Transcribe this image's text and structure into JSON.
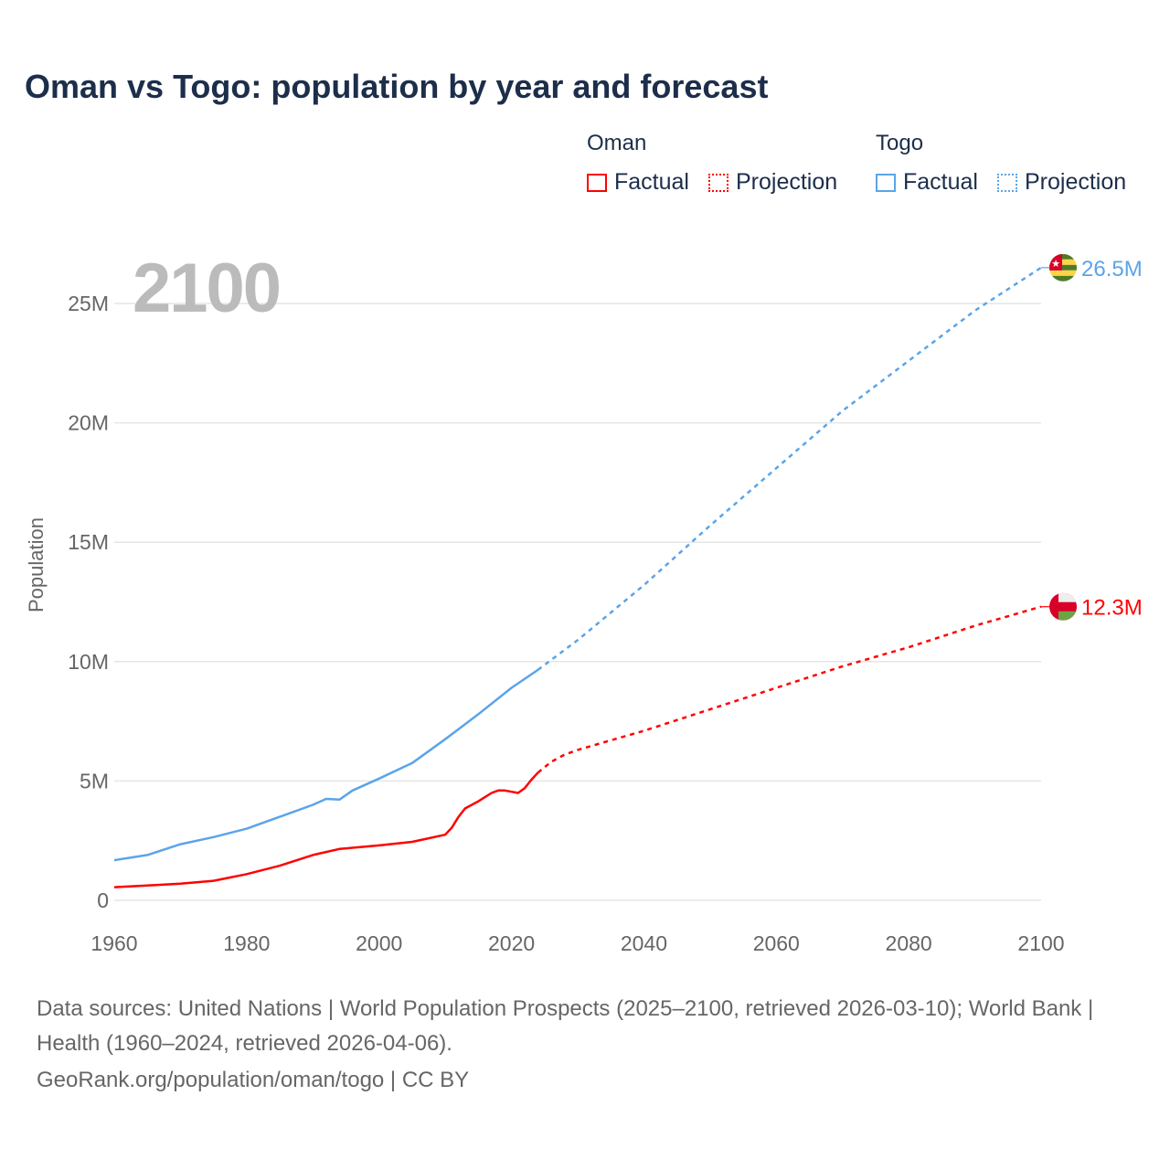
{
  "title": "Oman vs Togo: population by year and forecast",
  "legend": {
    "groups": [
      {
        "name": "Oman",
        "color": "#ff0000",
        "items": [
          "Factual",
          "Projection"
        ]
      },
      {
        "name": "Togo",
        "color": "#5ba4e8",
        "items": [
          "Factual",
          "Projection"
        ]
      }
    ]
  },
  "year_display": "2100",
  "chart_data": {
    "type": "line",
    "title": "Oman vs Togo: population by year and forecast",
    "xlabel": "",
    "ylabel": "Population",
    "xlim": [
      1960,
      2100
    ],
    "ylim": [
      0,
      27
    ],
    "x_ticks": [
      "1960",
      "1980",
      "2000",
      "2020",
      "2040",
      "2060",
      "2080",
      "2100"
    ],
    "y_ticks": [
      {
        "v": 0,
        "label": "0"
      },
      {
        "v": 5,
        "label": "5M"
      },
      {
        "v": 10,
        "label": "10M"
      },
      {
        "v": 15,
        "label": "15M"
      },
      {
        "v": 20,
        "label": "20M"
      },
      {
        "v": 25,
        "label": "25M"
      }
    ],
    "grid": true,
    "units": "millions",
    "series": [
      {
        "name": "Togo",
        "color": "#5ba4e8",
        "end_label": "26.5M",
        "factual": [
          [
            1960,
            1.68
          ],
          [
            1965,
            1.9
          ],
          [
            1970,
            2.35
          ],
          [
            1975,
            2.65
          ],
          [
            1980,
            3.0
          ],
          [
            1985,
            3.5
          ],
          [
            1990,
            4.0
          ],
          [
            1992,
            4.25
          ],
          [
            1994,
            4.22
          ],
          [
            1996,
            4.6
          ],
          [
            2000,
            5.1
          ],
          [
            2005,
            5.75
          ],
          [
            2010,
            6.75
          ],
          [
            2015,
            7.8
          ],
          [
            2020,
            8.9
          ],
          [
            2024,
            9.65
          ]
        ],
        "projection": [
          [
            2024,
            9.65
          ],
          [
            2030,
            10.9
          ],
          [
            2040,
            13.2
          ],
          [
            2050,
            15.7
          ],
          [
            2060,
            18.1
          ],
          [
            2070,
            20.5
          ],
          [
            2080,
            22.6
          ],
          [
            2090,
            24.7
          ],
          [
            2100,
            26.5
          ]
        ]
      },
      {
        "name": "Oman",
        "color": "#ff0000",
        "end_label": "12.3M",
        "factual": [
          [
            1960,
            0.55
          ],
          [
            1965,
            0.62
          ],
          [
            1970,
            0.7
          ],
          [
            1975,
            0.82
          ],
          [
            1980,
            1.1
          ],
          [
            1985,
            1.45
          ],
          [
            1990,
            1.9
          ],
          [
            1994,
            2.15
          ],
          [
            2000,
            2.3
          ],
          [
            2005,
            2.45
          ],
          [
            2010,
            2.75
          ],
          [
            2011,
            3.05
          ],
          [
            2012,
            3.5
          ],
          [
            2013,
            3.85
          ],
          [
            2015,
            4.15
          ],
          [
            2017,
            4.5
          ],
          [
            2018,
            4.6
          ],
          [
            2019,
            4.6
          ],
          [
            2020,
            4.55
          ],
          [
            2021,
            4.5
          ],
          [
            2022,
            4.7
          ],
          [
            2023,
            5.05
          ],
          [
            2024,
            5.35
          ]
        ],
        "projection": [
          [
            2024,
            5.35
          ],
          [
            2026,
            5.8
          ],
          [
            2028,
            6.1
          ],
          [
            2030,
            6.3
          ],
          [
            2040,
            7.1
          ],
          [
            2050,
            8.0
          ],
          [
            2060,
            8.9
          ],
          [
            2070,
            9.8
          ],
          [
            2080,
            10.6
          ],
          [
            2090,
            11.5
          ],
          [
            2100,
            12.3
          ]
        ]
      }
    ]
  },
  "footer": {
    "sources": "Data sources: United Nations | World Population Prospects (2025–2100, retrieved 2026-03-10); World Bank | Health (1960–2024, retrieved 2026-04-06).",
    "credit": "GeoRank.org/population/oman/togo | CC BY"
  }
}
